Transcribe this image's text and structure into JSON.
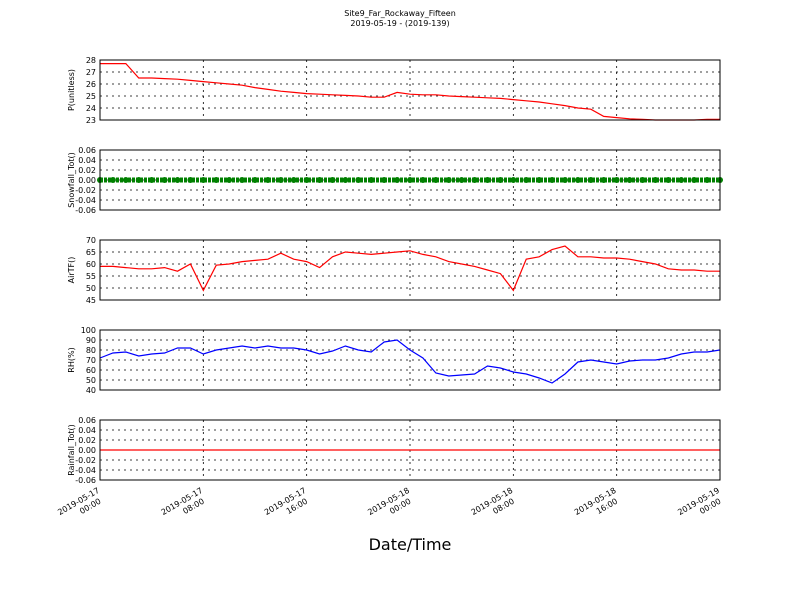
{
  "chart_data": [
    {
      "type": "line",
      "title": "Site9_Far_Rockaway_Fifteen",
      "subtitle": "2019-05-19 - (2019-139)",
      "ylabel": "P(unitless)",
      "x": [
        "2019-05-17 00:00",
        "2019-05-17 01:00",
        "2019-05-17 02:00",
        "2019-05-17 03:00",
        "2019-05-17 04:00",
        "2019-05-17 05:00",
        "2019-05-17 06:00",
        "2019-05-17 07:00",
        "2019-05-17 08:00",
        "2019-05-17 09:00",
        "2019-05-17 10:00",
        "2019-05-17 11:00",
        "2019-05-17 12:00",
        "2019-05-17 13:00",
        "2019-05-17 14:00",
        "2019-05-17 15:00",
        "2019-05-17 16:00",
        "2019-05-17 17:00",
        "2019-05-17 18:00",
        "2019-05-17 19:00",
        "2019-05-17 20:00",
        "2019-05-17 21:00",
        "2019-05-17 22:00",
        "2019-05-17 23:00",
        "2019-05-18 00:00",
        "2019-05-18 01:00",
        "2019-05-18 02:00",
        "2019-05-18 03:00",
        "2019-05-18 04:00",
        "2019-05-18 05:00",
        "2019-05-18 06:00",
        "2019-05-18 07:00",
        "2019-05-18 08:00",
        "2019-05-18 09:00",
        "2019-05-18 10:00",
        "2019-05-18 11:00",
        "2019-05-18 12:00",
        "2019-05-18 13:00",
        "2019-05-18 14:00",
        "2019-05-18 15:00",
        "2019-05-18 16:00",
        "2019-05-18 17:00",
        "2019-05-18 18:00",
        "2019-05-18 19:00",
        "2019-05-18 20:00",
        "2019-05-18 21:00",
        "2019-05-18 22:00",
        "2019-05-18 23:00",
        "2019-05-19 00:00"
      ],
      "series": [
        {
          "color": "#ff0000",
          "values": [
            27.7,
            27.7,
            27.7,
            26.5,
            26.5,
            26.45,
            26.4,
            26.3,
            26.2,
            26.1,
            26.0,
            25.9,
            25.7,
            25.55,
            25.4,
            25.3,
            25.2,
            25.15,
            25.1,
            25.05,
            25.0,
            24.9,
            24.9,
            25.3,
            25.15,
            25.1,
            25.1,
            25.0,
            24.95,
            24.9,
            24.85,
            24.8,
            24.7,
            24.6,
            24.5,
            24.35,
            24.2,
            24.0,
            23.9,
            23.3,
            23.2,
            23.1,
            23.05,
            23.0,
            23.0,
            23.0,
            23.0,
            23.05,
            23.05
          ]
        }
      ],
      "ylim": [
        23,
        28
      ],
      "yticks": [
        23,
        24,
        25,
        26,
        27,
        28
      ],
      "xlim": [
        "2019-05-17 00:00",
        "2019-05-19 00:00"
      ],
      "xticks": [
        "2019-05-17 00:00",
        "2019-05-17 08:00",
        "2019-05-17 16:00",
        "2019-05-18 00:00",
        "2019-05-18 08:00",
        "2019-05-18 16:00",
        "2019-05-19 00:00"
      ],
      "grid": true
    },
    {
      "type": "scatter",
      "ylabel": "Snowfall_Tot()",
      "x": [
        "2019-05-17 00:00",
        "2019-05-17 01:00",
        "2019-05-17 02:00",
        "2019-05-17 03:00",
        "2019-05-17 04:00",
        "2019-05-17 05:00",
        "2019-05-17 06:00",
        "2019-05-17 07:00",
        "2019-05-17 08:00",
        "2019-05-17 09:00",
        "2019-05-17 10:00",
        "2019-05-17 11:00",
        "2019-05-17 12:00",
        "2019-05-17 13:00",
        "2019-05-17 14:00",
        "2019-05-17 15:00",
        "2019-05-17 16:00",
        "2019-05-17 17:00",
        "2019-05-17 18:00",
        "2019-05-17 19:00",
        "2019-05-17 20:00",
        "2019-05-17 21:00",
        "2019-05-17 22:00",
        "2019-05-17 23:00",
        "2019-05-18 00:00",
        "2019-05-18 01:00",
        "2019-05-18 02:00",
        "2019-05-18 03:00",
        "2019-05-18 04:00",
        "2019-05-18 05:00",
        "2019-05-18 06:00",
        "2019-05-18 07:00",
        "2019-05-18 08:00",
        "2019-05-18 09:00",
        "2019-05-18 10:00",
        "2019-05-18 11:00",
        "2019-05-18 12:00",
        "2019-05-18 13:00",
        "2019-05-18 14:00",
        "2019-05-18 15:00",
        "2019-05-18 16:00",
        "2019-05-18 17:00",
        "2019-05-18 18:00",
        "2019-05-18 19:00",
        "2019-05-18 20:00",
        "2019-05-18 21:00",
        "2019-05-18 22:00",
        "2019-05-18 23:00",
        "2019-05-19 00:00"
      ],
      "series": [
        {
          "color": "#008000",
          "values": [
            0,
            0,
            0,
            0,
            0,
            0,
            0,
            0,
            0,
            0,
            0,
            0,
            0,
            0,
            0,
            0,
            0,
            0,
            0,
            0,
            0,
            0,
            0,
            0,
            0,
            0,
            0,
            0,
            0,
            0,
            0,
            0,
            0,
            0,
            0,
            0,
            0,
            0,
            0,
            0,
            0,
            0,
            0,
            0,
            0,
            0,
            0,
            0,
            0
          ]
        }
      ],
      "ylim": [
        -0.06,
        0.06
      ],
      "yticks": [
        -0.06,
        -0.04,
        -0.02,
        {
          "value": 0,
          "label": "0.00"
        },
        0.02,
        0.04,
        0.06
      ],
      "xlim": [
        "2019-05-17 00:00",
        "2019-05-19 00:00"
      ],
      "xticks": [
        "2019-05-17 00:00",
        "2019-05-17 08:00",
        "2019-05-17 16:00",
        "2019-05-18 00:00",
        "2019-05-18 08:00",
        "2019-05-18 16:00",
        "2019-05-19 00:00"
      ],
      "grid": true
    },
    {
      "type": "line",
      "ylabel": "AirTF()",
      "x": [
        "2019-05-17 00:00",
        "2019-05-17 01:00",
        "2019-05-17 02:00",
        "2019-05-17 03:00",
        "2019-05-17 04:00",
        "2019-05-17 05:00",
        "2019-05-17 06:00",
        "2019-05-17 07:00",
        "2019-05-17 08:00",
        "2019-05-17 09:00",
        "2019-05-17 10:00",
        "2019-05-17 11:00",
        "2019-05-17 12:00",
        "2019-05-17 13:00",
        "2019-05-17 14:00",
        "2019-05-17 15:00",
        "2019-05-17 16:00",
        "2019-05-17 17:00",
        "2019-05-17 18:00",
        "2019-05-17 19:00",
        "2019-05-17 20:00",
        "2019-05-17 21:00",
        "2019-05-17 22:00",
        "2019-05-17 23:00",
        "2019-05-18 00:00",
        "2019-05-18 01:00",
        "2019-05-18 02:00",
        "2019-05-18 03:00",
        "2019-05-18 04:00",
        "2019-05-18 05:00",
        "2019-05-18 06:00",
        "2019-05-18 07:00",
        "2019-05-18 08:00",
        "2019-05-18 09:00",
        "2019-05-18 10:00",
        "2019-05-18 11:00",
        "2019-05-18 12:00",
        "2019-05-18 13:00",
        "2019-05-18 14:00",
        "2019-05-18 15:00",
        "2019-05-18 16:00",
        "2019-05-18 17:00",
        "2019-05-18 18:00",
        "2019-05-18 19:00",
        "2019-05-18 20:00",
        "2019-05-18 21:00",
        "2019-05-18 22:00",
        "2019-05-18 23:00",
        "2019-05-19 00:00"
      ],
      "series": [
        {
          "color": "#ff0000",
          "values": [
            59,
            59,
            58.5,
            58,
            58,
            58.5,
            57,
            60,
            49,
            59.5,
            60,
            61,
            61.5,
            62,
            64.5,
            62,
            61,
            58.5,
            63,
            65,
            64.5,
            64,
            64.5,
            65,
            65.5,
            64,
            63,
            61,
            60,
            59,
            57.5,
            56,
            49,
            62,
            63,
            66,
            67.5,
            63,
            63,
            62.5,
            62.5,
            62,
            61,
            60,
            58,
            57.5,
            57.5,
            57,
            57
          ]
        }
      ],
      "ylim": [
        45,
        70
      ],
      "yticks": [
        45,
        50,
        55,
        60,
        65,
        70
      ],
      "xlim": [
        "2019-05-17 00:00",
        "2019-05-19 00:00"
      ],
      "xticks": [
        "2019-05-17 00:00",
        "2019-05-17 08:00",
        "2019-05-17 16:00",
        "2019-05-18 00:00",
        "2019-05-18 08:00",
        "2019-05-18 16:00",
        "2019-05-19 00:00"
      ],
      "grid": true
    },
    {
      "type": "line",
      "ylabel": "RH(%)",
      "x": [
        "2019-05-17 00:00",
        "2019-05-17 01:00",
        "2019-05-17 02:00",
        "2019-05-17 03:00",
        "2019-05-17 04:00",
        "2019-05-17 05:00",
        "2019-05-17 06:00",
        "2019-05-17 07:00",
        "2019-05-17 08:00",
        "2019-05-17 09:00",
        "2019-05-17 10:00",
        "2019-05-17 11:00",
        "2019-05-17 12:00",
        "2019-05-17 13:00",
        "2019-05-17 14:00",
        "2019-05-17 15:00",
        "2019-05-17 16:00",
        "2019-05-17 17:00",
        "2019-05-17 18:00",
        "2019-05-17 19:00",
        "2019-05-17 20:00",
        "2019-05-17 21:00",
        "2019-05-17 22:00",
        "2019-05-17 23:00",
        "2019-05-18 00:00",
        "2019-05-18 01:00",
        "2019-05-18 02:00",
        "2019-05-18 03:00",
        "2019-05-18 04:00",
        "2019-05-18 05:00",
        "2019-05-18 06:00",
        "2019-05-18 07:00",
        "2019-05-18 08:00",
        "2019-05-18 09:00",
        "2019-05-18 10:00",
        "2019-05-18 11:00",
        "2019-05-18 12:00",
        "2019-05-18 13:00",
        "2019-05-18 14:00",
        "2019-05-18 15:00",
        "2019-05-18 16:00",
        "2019-05-18 17:00",
        "2019-05-18 18:00",
        "2019-05-18 19:00",
        "2019-05-18 20:00",
        "2019-05-18 21:00",
        "2019-05-18 22:00",
        "2019-05-18 23:00",
        "2019-05-19 00:00"
      ],
      "series": [
        {
          "color": "#0000ff",
          "values": [
            72,
            77,
            78,
            74,
            76,
            77,
            82,
            82,
            76,
            80,
            82,
            84,
            82,
            84,
            82,
            82,
            80,
            76,
            79,
            84,
            80,
            78,
            88,
            90,
            80,
            72,
            57,
            54,
            55,
            56,
            64,
            62,
            58,
            56,
            52,
            47,
            56,
            68,
            70,
            68,
            66,
            69,
            70,
            70,
            72,
            76,
            78,
            78,
            80
          ]
        }
      ],
      "ylim": [
        40,
        100
      ],
      "yticks": [
        40,
        50,
        60,
        70,
        80,
        90,
        100
      ],
      "xlim": [
        "2019-05-17 00:00",
        "2019-05-19 00:00"
      ],
      "xticks": [
        "2019-05-17 00:00",
        "2019-05-17 08:00",
        "2019-05-17 16:00",
        "2019-05-18 00:00",
        "2019-05-18 08:00",
        "2019-05-18 16:00",
        "2019-05-19 00:00"
      ],
      "grid": true
    },
    {
      "type": "line",
      "ylabel": "Rainfall_Tot()",
      "xlabel": "Date/Time",
      "x": [
        "2019-05-17 00:00",
        "2019-05-17 01:00",
        "2019-05-17 02:00",
        "2019-05-17 03:00",
        "2019-05-17 04:00",
        "2019-05-17 05:00",
        "2019-05-17 06:00",
        "2019-05-17 07:00",
        "2019-05-17 08:00",
        "2019-05-17 09:00",
        "2019-05-17 10:00",
        "2019-05-17 11:00",
        "2019-05-17 12:00",
        "2019-05-17 13:00",
        "2019-05-17 14:00",
        "2019-05-17 15:00",
        "2019-05-17 16:00",
        "2019-05-17 17:00",
        "2019-05-17 18:00",
        "2019-05-17 19:00",
        "2019-05-17 20:00",
        "2019-05-17 21:00",
        "2019-05-17 22:00",
        "2019-05-17 23:00",
        "2019-05-18 00:00",
        "2019-05-18 01:00",
        "2019-05-18 02:00",
        "2019-05-18 03:00",
        "2019-05-18 04:00",
        "2019-05-18 05:00",
        "2019-05-18 06:00",
        "2019-05-18 07:00",
        "2019-05-18 08:00",
        "2019-05-18 09:00",
        "2019-05-18 10:00",
        "2019-05-18 11:00",
        "2019-05-18 12:00",
        "2019-05-18 13:00",
        "2019-05-18 14:00",
        "2019-05-18 15:00",
        "2019-05-18 16:00",
        "2019-05-18 17:00",
        "2019-05-18 18:00",
        "2019-05-18 19:00",
        "2019-05-18 20:00",
        "2019-05-18 21:00",
        "2019-05-18 22:00",
        "2019-05-18 23:00",
        "2019-05-19 00:00"
      ],
      "series": [
        {
          "color": "#ff0000",
          "values": [
            0,
            0,
            0,
            0,
            0,
            0,
            0,
            0,
            0,
            0,
            0,
            0,
            0,
            0,
            0,
            0,
            0,
            0,
            0,
            0,
            0,
            0,
            0,
            0,
            0,
            0,
            0,
            0,
            0,
            0,
            0,
            0,
            0,
            0,
            0,
            0,
            0,
            0,
            0,
            0,
            0,
            0,
            0,
            0,
            0,
            0,
            0,
            0,
            0
          ]
        }
      ],
      "ylim": [
        -0.06,
        0.06
      ],
      "yticks": [
        -0.06,
        -0.04,
        -0.02,
        {
          "value": 0,
          "label": "0.00"
        },
        0.02,
        0.04,
        0.06
      ],
      "xlim": [
        "2019-05-17 00:00",
        "2019-05-19 00:00"
      ],
      "xticks": [
        {
          "value": "2019-05-17 00:00",
          "label": "2019-05-17\n00:00"
        },
        {
          "value": "2019-05-17 08:00",
          "label": "2019-05-17\n08:00"
        },
        {
          "value": "2019-05-17 16:00",
          "label": "2019-05-17\n16:00"
        },
        {
          "value": "2019-05-18 00:00",
          "label": "2019-05-18\n00:00"
        },
        {
          "value": "2019-05-18 08:00",
          "label": "2019-05-18\n08:00"
        },
        {
          "value": "2019-05-18 16:00",
          "label": "2019-05-18\n16:00"
        },
        {
          "value": "2019-05-19 00:00",
          "label": "2019-05-19\n00:00"
        }
      ],
      "grid": true
    }
  ]
}
